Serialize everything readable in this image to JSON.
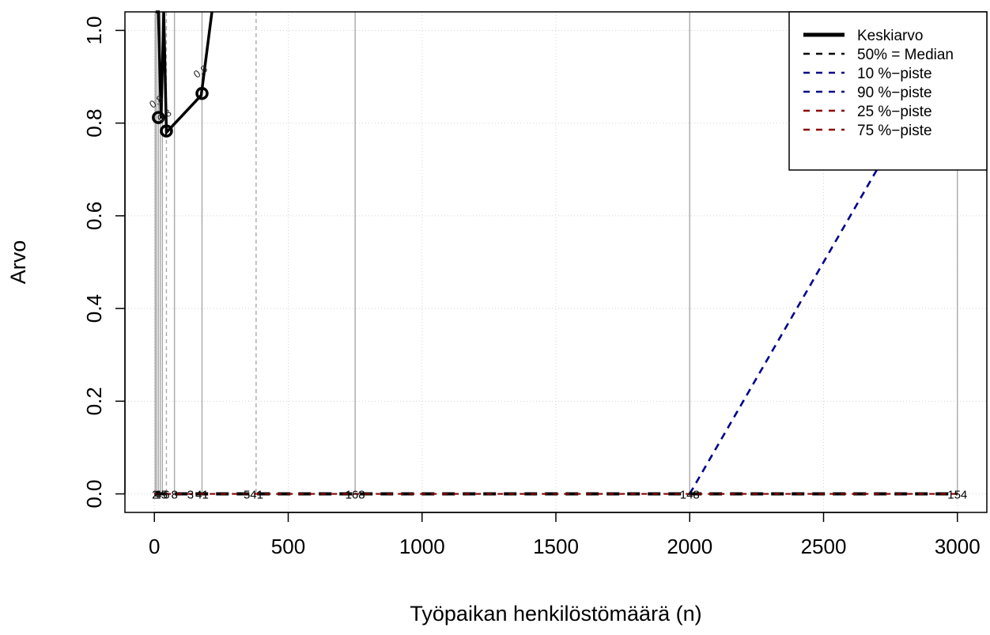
{
  "chart_data": {
    "type": "line",
    "xlabel": "Työpaikan henkilöstömäärä (n)",
    "ylabel": "Arvo",
    "xlim": [
      -110,
      3110
    ],
    "ylim": [
      -0.04,
      1.04
    ],
    "x_ticks": [
      "0",
      "500",
      "1000",
      "1500",
      "2000",
      "2500",
      "3000"
    ],
    "x_tick_values": [
      0,
      500,
      1000,
      1500,
      2000,
      2500,
      3000
    ],
    "y_ticks": [
      "0.0",
      "0.2",
      "0.4",
      "0.6",
      "0.8",
      "1.0"
    ],
    "y_tick_values": [
      0,
      0.2,
      0.4,
      0.6,
      0.8,
      1.0
    ],
    "grid": true,
    "legend_position": "top-right",
    "series": [
      {
        "name": "Keskiarvo",
        "color": "#000000",
        "style": "solid-thick"
      },
      {
        "name": "50% = Median",
        "color": "#000000",
        "style": "dashed"
      },
      {
        "name": "10 %−piste",
        "color": "#00008b",
        "style": "dashed"
      },
      {
        "name": "90 %−piste",
        "color": "#00008b",
        "style": "dashed"
      },
      {
        "name": "25 %−piste",
        "color": "#8b0000",
        "style": "dashed"
      },
      {
        "name": "75 %−piste",
        "color": "#8b0000",
        "style": "dashed"
      }
    ],
    "curves": {
      "mean": {
        "x": [
          5,
          15,
          25,
          35,
          45,
          175,
          215
        ],
        "y": [
          1.04,
          1.04,
          0.81,
          1.04,
          0.78,
          0.86,
          1.04
        ]
      },
      "flat_zero": {
        "x": [
          0,
          3000
        ],
        "y": [
          0,
          0
        ]
      },
      "p90": {
        "x": [
          2000,
          3000
        ],
        "y": [
          0,
          1.0
        ]
      }
    },
    "markers": [
      {
        "x": 15,
        "y": 0.812
      },
      {
        "x": 45,
        "y": 0.783
      },
      {
        "x": 178,
        "y": 0.864
      }
    ],
    "vertical_lines": [
      {
        "x": 3,
        "style": "solid"
      },
      {
        "x": 8,
        "style": "solid"
      },
      {
        "x": 15,
        "style": "solid"
      },
      {
        "x": 22,
        "style": "solid"
      },
      {
        "x": 30,
        "style": "solid"
      },
      {
        "x": 45,
        "style": "dashed"
      },
      {
        "x": 75,
        "style": "solid"
      },
      {
        "x": 178,
        "style": "solid"
      },
      {
        "x": 380,
        "style": "dashed"
      },
      {
        "x": 750,
        "style": "solid"
      },
      {
        "x": 2000,
        "style": "solid"
      },
      {
        "x": 3000,
        "style": "solid"
      }
    ],
    "count_labels": [
      {
        "x": 3,
        "text": "2"
      },
      {
        "x": 15,
        "text": "4"
      },
      {
        "x": 25,
        "text": "15"
      },
      {
        "x": 45,
        "text": "6"
      },
      {
        "x": 75,
        "text": "8"
      },
      {
        "x": 135,
        "text": "3"
      },
      {
        "x": 178,
        "text": "41"
      },
      {
        "x": 370,
        "text": "541"
      },
      {
        "x": 750,
        "text": "168"
      },
      {
        "x": 2000,
        "text": "148"
      },
      {
        "x": 3000,
        "text": "154"
      }
    ],
    "point_labels": [
      {
        "x": 15,
        "y": 0.84,
        "text": "0.8"
      },
      {
        "x": 45,
        "y": 0.81,
        "text": "0.8"
      },
      {
        "x": 180,
        "y": 0.905,
        "text": "0.9"
      }
    ]
  }
}
